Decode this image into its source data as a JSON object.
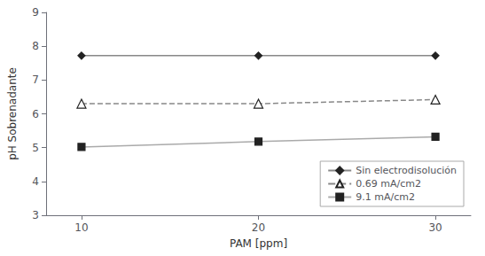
{
  "chart_data": {
    "type": "line",
    "x": [
      10,
      20,
      30
    ],
    "series": [
      {
        "name": "Sin electrodisolución",
        "values": [
          7.72,
          7.72,
          7.72
        ],
        "color": "#888888",
        "marker": "diamond",
        "line_style": "solid"
      },
      {
        "name": "0.69 mA/cm2",
        "values": [
          6.3,
          6.3,
          6.42
        ],
        "color": "#888888",
        "marker": "triangle-open",
        "line_style": "dashed"
      },
      {
        "name": "9.1 mA/cm2",
        "values": [
          5.02,
          5.18,
          5.32
        ],
        "color": "#aaaaaa",
        "marker": "square",
        "line_style": "solid"
      }
    ],
    "xlabel": "PAM [ppm]",
    "ylabel": "pH Sobrenadante",
    "xlim": [
      8,
      32
    ],
    "ylim": [
      3,
      9
    ],
    "xticks": [
      10,
      20,
      30
    ],
    "yticks": [
      3,
      4,
      5,
      6,
      7,
      8,
      9
    ],
    "grid": false,
    "legend": "lower right"
  }
}
